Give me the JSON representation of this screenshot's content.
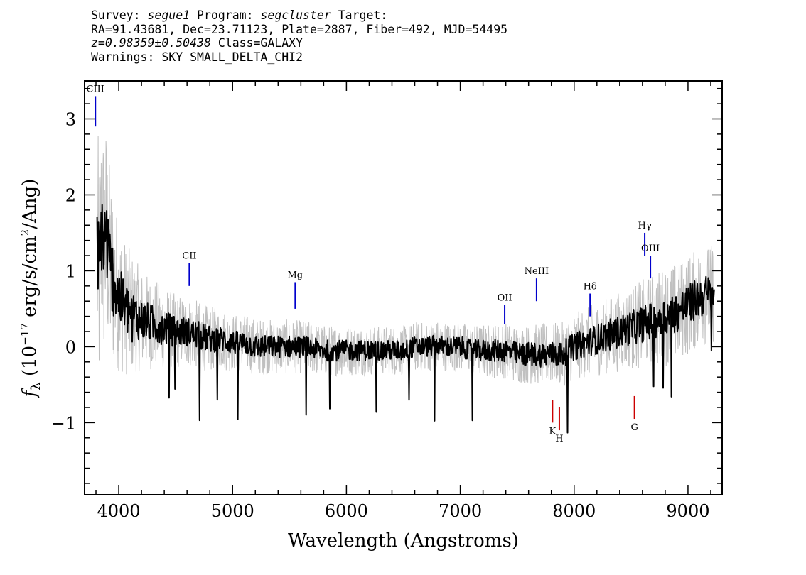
{
  "header": {
    "survey_label": "Survey:",
    "survey": "segue1",
    "program_label": "Program:",
    "program": "segcluster",
    "target_label": "Target:",
    "line2": "RA=91.43681, Dec=23.71123, Plate=2887, Fiber=492, MJD=54495",
    "redshift": "z=0.98359±0.50438",
    "class_text": "Class=GALAXY",
    "warnings": "Warnings: SKY SMALL_DELTA_CHI2"
  },
  "chart_data": {
    "type": "line",
    "xlabel": "Wavelength (Angstroms)",
    "ylabel_prefix": "f",
    "ylabel_sub": "λ",
    "ylabel_main": " (10",
    "ylabel_exp": "−17",
    "ylabel_rest": " erg/s/cm",
    "ylabel_exp2": "2",
    "ylabel_tail": "/Ang)",
    "xlim": [
      3700,
      9300
    ],
    "ylim": [
      -1.95,
      3.5
    ],
    "xticks": [
      4000,
      5000,
      6000,
      7000,
      8000,
      9000
    ],
    "yticks": [
      -1,
      0,
      1,
      2,
      3
    ],
    "grid": false,
    "colors": {
      "flux": "#000000",
      "error_band": "#c0c0c0",
      "emission": "#0000cc",
      "absorption": "#cc0000"
    },
    "series": [
      {
        "role": "flux",
        "x": [
          3810,
          3830,
          3850,
          3870,
          3890,
          3910,
          3930,
          3950,
          3970,
          3990,
          4020,
          4060,
          4100,
          4150,
          4200,
          4300,
          4400,
          4500,
          4600,
          4700,
          4800,
          4900,
          5000,
          5100,
          5200,
          5300,
          5400,
          5500,
          5600,
          5700,
          5800,
          5900,
          6000,
          6100,
          6200,
          6300,
          6400,
          6500,
          6600,
          6700,
          6800,
          6900,
          7000,
          7100,
          7200,
          7300,
          7400,
          7500,
          7600,
          7700,
          7800,
          7900,
          8000,
          8100,
          8200,
          8300,
          8400,
          8500,
          8600,
          8700,
          8800,
          8900,
          9000,
          9100,
          9200,
          9230
        ],
        "y": [
          1.2,
          0.9,
          1.6,
          1.3,
          1.5,
          1.2,
          1.0,
          0.9,
          0.8,
          0.7,
          0.6,
          0.5,
          0.45,
          0.4,
          0.35,
          0.3,
          0.25,
          0.2,
          0.2,
          0.15,
          0.1,
          0.1,
          0.05,
          0.05,
          0.0,
          0.0,
          0.0,
          0.0,
          0.0,
          -0.02,
          -0.05,
          -0.05,
          -0.05,
          -0.05,
          -0.05,
          -0.05,
          -0.05,
          -0.05,
          0.0,
          0.0,
          0.02,
          0.0,
          0.0,
          -0.05,
          -0.05,
          -0.05,
          -0.05,
          -0.1,
          -0.1,
          -0.1,
          -0.1,
          -0.1,
          0.0,
          0.05,
          0.1,
          0.15,
          0.2,
          0.25,
          0.3,
          0.35,
          0.4,
          0.45,
          0.55,
          0.65,
          0.7,
          0.7
        ]
      },
      {
        "role": "error_half_width",
        "x": [
          3810,
          3900,
          4000,
          4200,
          4500,
          5000,
          6000,
          7000,
          8000,
          8500,
          8800,
          9000,
          9230
        ],
        "y": [
          1.6,
          1.3,
          0.9,
          0.6,
          0.45,
          0.35,
          0.3,
          0.3,
          0.4,
          0.5,
          0.6,
          0.6,
          0.6
        ]
      }
    ],
    "lines": [
      {
        "label": "CIII",
        "x": 3795,
        "y0": 2.9,
        "y1": 3.3,
        "kind": "emission"
      },
      {
        "label": "CII",
        "x": 4620,
        "y0": 0.8,
        "y1": 1.1,
        "kind": "emission"
      },
      {
        "label": "Mg",
        "x": 5550,
        "y0": 0.5,
        "y1": 0.85,
        "kind": "emission"
      },
      {
        "label": "OII",
        "x": 7390,
        "y0": 0.3,
        "y1": 0.55,
        "kind": "emission"
      },
      {
        "label": "NeIII",
        "x": 7670,
        "y0": 0.6,
        "y1": 0.9,
        "kind": "emission"
      },
      {
        "label": "Hδ",
        "x": 8140,
        "y0": 0.4,
        "y1": 0.7,
        "kind": "emission"
      },
      {
        "label": "Hγ",
        "x": 8620,
        "y0": 1.2,
        "y1": 1.5,
        "kind": "emission"
      },
      {
        "label": "OIII",
        "x": 8670,
        "y0": 0.9,
        "y1": 1.2,
        "kind": "emission"
      },
      {
        "label": "K",
        "x": 7810,
        "y0": -0.7,
        "y1": -1.0,
        "kind": "absorption"
      },
      {
        "label": "H",
        "x": 7870,
        "y0": -0.8,
        "y1": -1.1,
        "kind": "absorption"
      },
      {
        "label": "G",
        "x": 8530,
        "y0": -0.65,
        "y1": -0.95,
        "kind": "absorption"
      }
    ]
  }
}
